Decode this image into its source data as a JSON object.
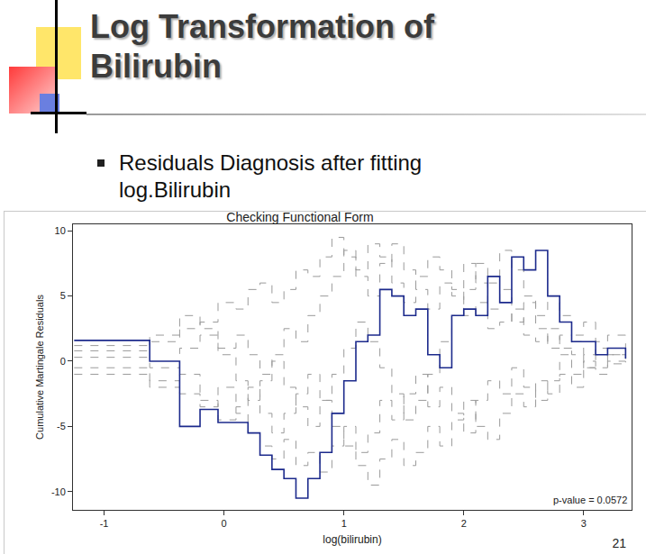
{
  "slide": {
    "title": "Log Transformation of Bilirubin",
    "bullet": "Residuals Diagnosis after fitting log.Bilirubin",
    "page_number": "21"
  },
  "chart_data": {
    "type": "line",
    "title": "Checking Functional Form",
    "x_label": "log(bilirubin)",
    "y_label": "Cumulative Martingale Residuals",
    "annotations": [
      "p-value = 0.0572"
    ],
    "x": [
      -1.25,
      -0.62,
      -0.37,
      -0.2,
      -0.05,
      0.1,
      0.2,
      0.3,
      0.4,
      0.5,
      0.6,
      0.7,
      0.8,
      0.9,
      1.0,
      1.1,
      1.2,
      1.3,
      1.4,
      1.5,
      1.6,
      1.7,
      1.8,
      1.9,
      2.0,
      2.1,
      2.2,
      2.3,
      2.4,
      2.5,
      2.6,
      2.7,
      2.8,
      2.9,
      3.0,
      3.1,
      3.2,
      3.35
    ],
    "series": [
      {
        "color": "#9a9a9a",
        "line_style": "dashed",
        "values": [
          1.2,
          1.5,
          2.5,
          3.0,
          4.5,
          4.0,
          5.5,
          6.0,
          4.5,
          5.5,
          7.0,
          6.5,
          8.0,
          9.5,
          8.0,
          6.5,
          5.0,
          7.5,
          9.0,
          7.0,
          5.5,
          4.0,
          6.0,
          5.0,
          3.5,
          4.5,
          2.5,
          3.0,
          4.0,
          2.0,
          1.5,
          2.5,
          1.0,
          1.5,
          0.5,
          1.0,
          0.5,
          0.3
        ]
      },
      {
        "color": "#9a9a9a",
        "line_style": "dashed",
        "values": [
          -0.5,
          -1.5,
          -2.5,
          -3.5,
          -2.0,
          -4.0,
          -5.5,
          -6.5,
          -7.5,
          -6.0,
          -8.0,
          -7.0,
          -8.5,
          -6.5,
          -5.0,
          -7.0,
          -5.5,
          -3.0,
          -4.5,
          -2.5,
          -1.0,
          -3.5,
          -2.0,
          -4.0,
          -5.5,
          -3.0,
          -1.5,
          -2.5,
          -0.5,
          -2.0,
          -3.0,
          -1.5,
          0.5,
          -1.0,
          0.0,
          -0.5,
          0.5,
          -0.3
        ]
      },
      {
        "color": "#9a9a9a",
        "line_style": "dashed",
        "values": [
          0.8,
          2.0,
          3.5,
          2.5,
          1.0,
          2.0,
          0.5,
          -1.0,
          0.5,
          2.5,
          1.5,
          3.5,
          5.0,
          6.5,
          8.5,
          7.0,
          9.0,
          8.0,
          6.0,
          4.5,
          6.5,
          8.0,
          7.0,
          5.5,
          7.5,
          6.0,
          4.0,
          5.5,
          3.0,
          4.5,
          2.5,
          1.0,
          2.0,
          0.5,
          -0.5,
          0.5,
          -0.2,
          0.1
        ]
      },
      {
        "color": "#9a9a9a",
        "line_style": "dashed",
        "values": [
          -1.0,
          -2.0,
          -1.0,
          -3.0,
          -4.5,
          -3.5,
          -2.0,
          -4.0,
          -5.5,
          -4.0,
          -2.5,
          -1.0,
          -3.0,
          -5.0,
          -6.5,
          -8.0,
          -9.5,
          -7.5,
          -6.0,
          -8.0,
          -7.0,
          -5.0,
          -6.5,
          -4.5,
          -3.0,
          -5.0,
          -6.0,
          -4.0,
          -2.5,
          -3.5,
          -1.5,
          -2.5,
          -1.0,
          -2.0,
          -0.5,
          -1.0,
          0.0,
          -0.2
        ]
      },
      {
        "color": "#9a9a9a",
        "line_style": "dashed",
        "values": [
          0.3,
          -0.5,
          1.0,
          2.0,
          0.5,
          -1.5,
          -3.0,
          -1.5,
          0.0,
          -2.0,
          -3.5,
          -5.0,
          -3.0,
          -1.0,
          1.0,
          3.0,
          1.5,
          -0.5,
          -2.5,
          -4.5,
          -3.0,
          -1.0,
          1.5,
          3.5,
          5.5,
          7.5,
          6.0,
          8.5,
          7.0,
          5.0,
          3.5,
          5.0,
          3.5,
          2.0,
          3.0,
          1.5,
          2.0,
          0.8
        ]
      },
      {
        "color": "#1c2a8c",
        "line_style": "solid",
        "values": [
          1.6,
          0,
          -5.0,
          -3.7,
          -4.7,
          -4.7,
          -5.5,
          -7.2,
          -8.3,
          -9.0,
          -10.5,
          -9.0,
          -7.0,
          -4.0,
          -1.5,
          1.5,
          2.0,
          5.5,
          5.0,
          3.5,
          4.0,
          0.5,
          -0.5,
          3.5,
          4.0,
          3.5,
          6.5,
          4.5,
          8.0,
          7.0,
          8.5,
          5.0,
          3.0,
          1.5,
          1.5,
          0.5,
          1.0,
          0.2
        ]
      }
    ],
    "xlim": [
      -1.26,
      3.4
    ],
    "xticks": [
      -1,
      0,
      1,
      2,
      3
    ],
    "ylim": [
      -11.4,
      10.5
    ],
    "yticks": [
      -10,
      -5,
      0,
      5,
      10
    ],
    "grid": false
  }
}
